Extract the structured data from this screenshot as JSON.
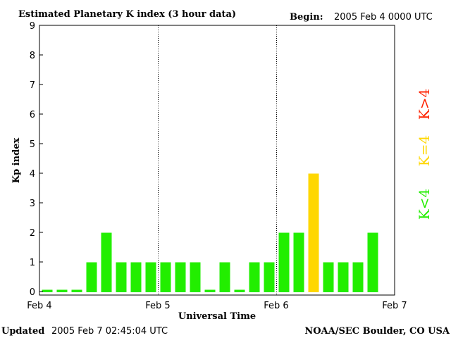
{
  "header": {
    "title": "Estimated Planetary K index (3 hour data)",
    "begin_label": "Begin:",
    "begin_value": "2005 Feb 4 0000 UTC"
  },
  "footer": {
    "updated_label": "Updated",
    "updated_value": "2005 Feb  7 02:45:04 UTC",
    "source": "NOAA/SEC Boulder, CO USA"
  },
  "legend": {
    "gt4": "K>4",
    "eq4": "K=4",
    "lt4": "K<4"
  },
  "colors": {
    "lt4": "#22ee00",
    "eq4": "#ffd700",
    "gt4": "#ff2200"
  },
  "chart_data": {
    "type": "bar",
    "title": "Estimated Planetary K index (3 hour data)",
    "xlabel": "Universal Time",
    "ylabel": "Kp index",
    "ylim": [
      0,
      9
    ],
    "y_ticks": [
      "0",
      "1",
      "2",
      "3",
      "4",
      "5",
      "6",
      "7",
      "8",
      "9"
    ],
    "x_ticks": [
      "Feb 4",
      "Feb 5",
      "Feb 6",
      "Feb 7"
    ],
    "values": [
      0,
      0,
      0,
      1,
      2,
      1,
      1,
      1,
      1,
      1,
      1,
      0,
      1,
      0,
      1,
      1,
      2,
      2,
      4,
      1,
      1,
      1,
      2
    ]
  }
}
